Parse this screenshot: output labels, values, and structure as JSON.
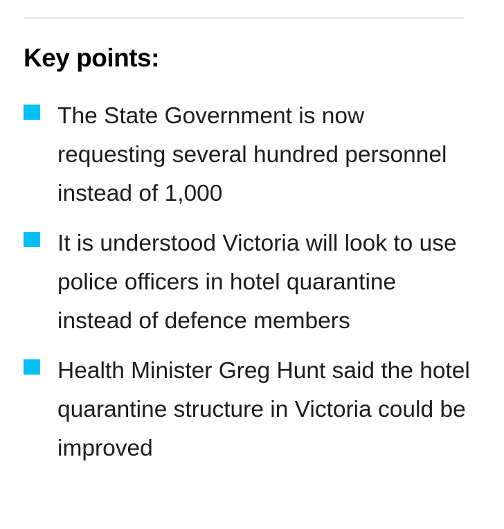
{
  "heading": "Key points:",
  "colors": {
    "bullet": "#00bff3",
    "divider": "#e6e6e6",
    "text": "#1c1c1c"
  },
  "key_points": [
    "The State Government is now requesting several hundred personnel instead of 1,000",
    "It is understood Victoria will look to use police officers in hotel quarantine instead of defence members",
    "Health Minister Greg Hunt said the hotel quarantine structure in Victoria could be improved"
  ]
}
